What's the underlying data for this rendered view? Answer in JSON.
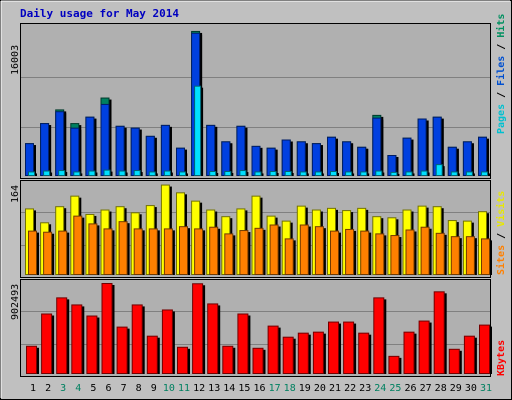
{
  "chart_data": {
    "title": "Daily usage for May 2014",
    "type": "bar",
    "days": [
      "1",
      "2",
      "3",
      "4",
      "5",
      "6",
      "7",
      "8",
      "9",
      "10",
      "11",
      "12",
      "13",
      "14",
      "15",
      "16",
      "17",
      "18",
      "19",
      "20",
      "21",
      "22",
      "23",
      "24",
      "25",
      "26",
      "27",
      "28",
      "29",
      "30",
      "31"
    ],
    "weekend_days": [
      "3",
      "4",
      "10",
      "11",
      "17",
      "18",
      "24",
      "25",
      "31"
    ],
    "panels": [
      {
        "id": "top",
        "max_label": "16003",
        "ymax": 16003,
        "legend": [
          {
            "text": "Pages",
            "color": "#00c0d0"
          },
          {
            "text": " / ",
            "color": "#000000"
          },
          {
            "text": "Files",
            "color": "#0050d0"
          },
          {
            "text": " / ",
            "color": "#000000"
          },
          {
            "text": "Hits",
            "color": "#009060"
          }
        ],
        "series": [
          {
            "name": "Hits",
            "color": "#008060",
            "values": [
              3600,
              5800,
              7300,
              5800,
              6500,
              8600,
              5500,
              5300,
              4400,
              5600,
              3100,
              15900,
              5600,
              3800,
              5500,
              3300,
              3100,
              4000,
              3800,
              3600,
              4300,
              3800,
              3200,
              6700,
              2300,
              4200,
              6300,
              6500,
              3200,
              3800,
              4300
            ]
          },
          {
            "name": "Files",
            "color": "#0040e0",
            "values": [
              3600,
              5800,
              7100,
              5300,
              6500,
              7900,
              5500,
              5300,
              4400,
              5600,
              3100,
              15700,
              5600,
              3800,
              5500,
              3300,
              3100,
              4000,
              3800,
              3600,
              4300,
              3800,
              3200,
              6400,
              2300,
              4200,
              6300,
              6500,
              3200,
              3800,
              4300
            ]
          },
          {
            "name": "Pages",
            "color": "#00e0ff",
            "values": [
              500,
              600,
              650,
              500,
              600,
              700,
              600,
              650,
              500,
              600,
              500,
              9900,
              550,
              550,
              650,
              500,
              550,
              550,
              500,
              500,
              550,
              500,
              500,
              600,
              450,
              500,
              600,
              1300,
              500,
              500,
              500
            ]
          }
        ]
      },
      {
        "id": "middle",
        "max_label": "164",
        "ymax": 164,
        "legend": [
          {
            "text": "Sites",
            "color": "#ff8000"
          },
          {
            "text": " / ",
            "color": "#000000"
          },
          {
            "text": "Visits",
            "color": "#e8e800"
          }
        ],
        "series": [
          {
            "name": "Visits",
            "color": "#ffff00",
            "values": [
              120,
              95,
              124,
              143,
              110,
              118,
              124,
              113,
              126,
              163,
              149,
              134,
              118,
              106,
              120,
              143,
              107,
              98,
              125,
              118,
              121,
              117,
              121,
              106,
              104,
              118,
              125,
              124,
              99,
              98,
              115
            ]
          },
          {
            "name": "Sites",
            "color": "#ff8000",
            "values": [
              80,
              78,
              80,
              107,
              93,
              84,
              97,
              84,
              84,
              84,
              88,
              84,
              87,
              75,
              81,
              85,
              91,
              66,
              91,
              88,
              80,
              83,
              80,
              75,
              72,
              82,
              87,
              76,
              70,
              70,
              66
            ]
          }
        ]
      },
      {
        "id": "bottom",
        "max_label": "902493",
        "ymax": 902493,
        "legend": [
          {
            "text": "KBytes",
            "color": "#ff0000"
          }
        ],
        "series": [
          {
            "name": "KBytes",
            "color": "#ff0000",
            "values": [
              280000,
              600000,
              760000,
              690000,
              580000,
              902493,
              470000,
              690000,
              380000,
              640000,
              270000,
              900000,
              700000,
              280000,
              600000,
              260000,
              480000,
              370000,
              410000,
              420000,
              520000,
              520000,
              410000,
              760000,
              180000,
              420000,
              530000,
              820000,
              250000,
              380000,
              490000
            ]
          }
        ]
      }
    ]
  }
}
